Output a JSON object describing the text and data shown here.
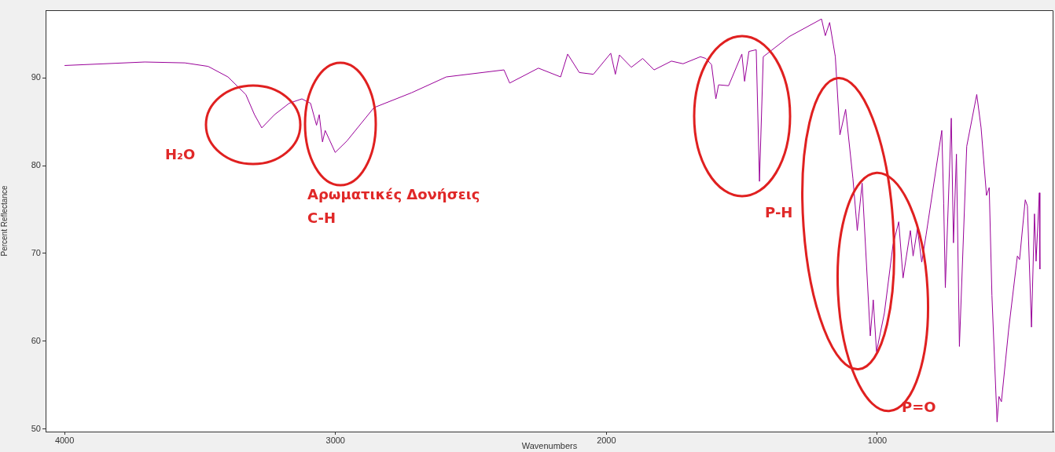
{
  "chart_data": {
    "type": "line",
    "xlabel": "Wavenumbers",
    "ylabel": "Percent Reflectance",
    "annotations": [
      "H₂O",
      "Αρωματικές Δονήσεις\nC-H",
      "P-H",
      "P=O"
    ],
    "xlim": [
      4070,
      350
    ],
    "ylim": [
      49.7,
      97.7
    ],
    "xticks": [
      4000,
      3000,
      2000,
      1000
    ],
    "yticks": [
      50,
      60,
      70,
      80,
      90
    ],
    "grid": false,
    "legend": false,
    "marker": "none",
    "line_style": "solid",
    "series": [
      {
        "color": "#990099",
        "x": [
          4000,
          3704,
          3556,
          3470,
          3397,
          3331,
          3299,
          3272,
          3225,
          3171,
          3124,
          3092,
          3070,
          3060,
          3048,
          3038,
          3001,
          2958,
          2858,
          2719,
          2591,
          2378,
          2357,
          2251,
          2169,
          2143,
          2100,
          2048,
          1984,
          1967,
          1952,
          1908,
          1866,
          1824,
          1760,
          1717,
          1653,
          1633,
          1612,
          1596,
          1586,
          1549,
          1500,
          1490,
          1474,
          1447,
          1435,
          1421,
          1325,
          1206,
          1192,
          1176,
          1155,
          1138,
          1117,
          1090,
          1074,
          1056,
          1026,
          1015,
          1003,
          974,
          942,
          921,
          905,
          878,
          868,
          852,
          836,
          820,
          762,
          755,
          749,
          727,
          719,
          708,
          697,
          670,
          633,
          617,
          597,
          587,
          577,
          558,
          551,
          542,
          515,
          483,
          475,
          454,
          446,
          431,
          420,
          414,
          402,
          400
        ],
        "values": [
          91.4,
          91.8,
          91.7,
          91.3,
          90.1,
          88.1,
          85.8,
          84.3,
          85.8,
          87.1,
          87.6,
          87.1,
          84.6,
          85.8,
          82.7,
          84.0,
          81.5,
          82.8,
          86.6,
          88.3,
          90.1,
          90.9,
          89.4,
          91.1,
          90.1,
          92.7,
          90.6,
          90.4,
          92.8,
          90.4,
          92.6,
          91.2,
          92.2,
          90.9,
          91.9,
          91.6,
          92.4,
          92.2,
          91.5,
          87.6,
          89.2,
          89.1,
          92.7,
          89.6,
          93.0,
          93.2,
          78.2,
          92.4,
          94.7,
          96.7,
          94.8,
          96.3,
          92.4,
          83.5,
          86.4,
          78.5,
          72.6,
          78.0,
          60.6,
          64.7,
          58.8,
          63.2,
          71.0,
          73.6,
          67.2,
          72.6,
          69.7,
          72.8,
          69.0,
          72.1,
          84.0,
          75.7,
          66.1,
          85.4,
          71.2,
          81.3,
          59.4,
          82.2,
          88.1,
          84.3,
          76.6,
          77.5,
          65.2,
          50.8,
          53.7,
          53.1,
          61.4,
          69.7,
          69.3,
          76.1,
          75.4,
          61.6,
          74.5,
          69.1,
          76.9,
          68.2
        ]
      }
    ]
  }
}
